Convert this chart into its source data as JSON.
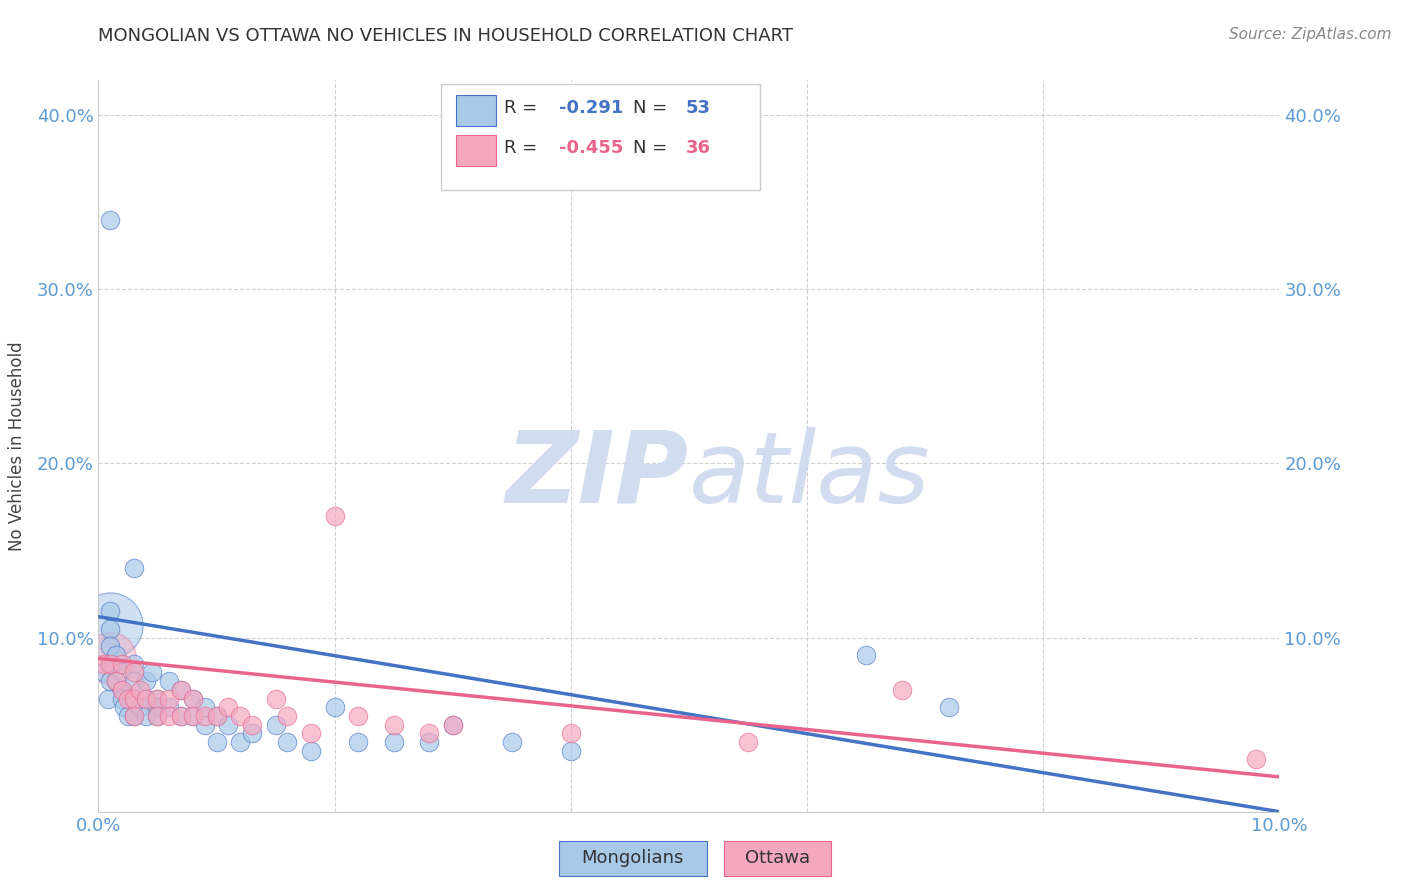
{
  "title": "MONGOLIAN VS OTTAWA NO VEHICLES IN HOUSEHOLD CORRELATION CHART",
  "source": "Source: ZipAtlas.com",
  "ylabel": "No Vehicles in Household",
  "xlim": [
    0.0,
    0.1
  ],
  "ylim": [
    0.0,
    0.42
  ],
  "yticks_left": [
    0.0,
    0.1,
    0.2,
    0.3,
    0.4
  ],
  "ytick_labels_left": [
    "",
    "10.0%",
    "20.0%",
    "30.0%",
    "40.0%"
  ],
  "yticks_right": [
    0.1,
    0.2,
    0.3,
    0.4
  ],
  "ytick_labels_right": [
    "10.0%",
    "20.0%",
    "30.0%",
    "40.0%"
  ],
  "xticks": [
    0.0,
    0.02,
    0.04,
    0.06,
    0.08,
    0.1
  ],
  "xtick_labels": [
    "0.0%",
    "",
    "",
    "",
    "",
    "10.0%"
  ],
  "mongolian_color": "#a8c8e8",
  "ottawa_color": "#f4a8c0",
  "mongolian_line_color": "#4472C4",
  "ottawa_line_color": "#e8648a",
  "legend_R_mongolian": "-0.291",
  "legend_N_mongolian": "53",
  "legend_R_ottawa": "-0.455",
  "legend_N_ottawa": "36",
  "background_color": "#ffffff",
  "grid_color": "#cccccc",
  "mong_x": [
    0.0005,
    0.0008,
    0.001,
    0.001,
    0.001,
    0.001,
    0.0012,
    0.0015,
    0.0015,
    0.002,
    0.002,
    0.002,
    0.0022,
    0.0025,
    0.003,
    0.003,
    0.003,
    0.003,
    0.003,
    0.0035,
    0.004,
    0.004,
    0.004,
    0.0045,
    0.005,
    0.005,
    0.005,
    0.006,
    0.006,
    0.007,
    0.007,
    0.008,
    0.008,
    0.009,
    0.009,
    0.01,
    0.01,
    0.011,
    0.012,
    0.013,
    0.015,
    0.016,
    0.018,
    0.02,
    0.022,
    0.025,
    0.028,
    0.03,
    0.035,
    0.04,
    0.065,
    0.072,
    0.001
  ],
  "mong_y": [
    0.08,
    0.065,
    0.115,
    0.105,
    0.095,
    0.075,
    0.085,
    0.09,
    0.075,
    0.08,
    0.07,
    0.065,
    0.06,
    0.055,
    0.14,
    0.085,
    0.075,
    0.065,
    0.055,
    0.06,
    0.075,
    0.065,
    0.055,
    0.08,
    0.065,
    0.06,
    0.055,
    0.075,
    0.06,
    0.07,
    0.055,
    0.065,
    0.055,
    0.06,
    0.05,
    0.055,
    0.04,
    0.05,
    0.04,
    0.045,
    0.05,
    0.04,
    0.035,
    0.06,
    0.04,
    0.04,
    0.04,
    0.05,
    0.04,
    0.035,
    0.09,
    0.06,
    0.34
  ],
  "ott_x": [
    0.0005,
    0.001,
    0.0015,
    0.002,
    0.002,
    0.0025,
    0.003,
    0.003,
    0.003,
    0.0035,
    0.004,
    0.005,
    0.005,
    0.006,
    0.006,
    0.007,
    0.007,
    0.008,
    0.008,
    0.009,
    0.01,
    0.011,
    0.012,
    0.013,
    0.015,
    0.016,
    0.018,
    0.02,
    0.022,
    0.025,
    0.028,
    0.03,
    0.04,
    0.055,
    0.068,
    0.098
  ],
  "ott_y": [
    0.085,
    0.085,
    0.075,
    0.085,
    0.07,
    0.065,
    0.08,
    0.065,
    0.055,
    0.07,
    0.065,
    0.065,
    0.055,
    0.065,
    0.055,
    0.07,
    0.055,
    0.065,
    0.055,
    0.055,
    0.055,
    0.06,
    0.055,
    0.05,
    0.065,
    0.055,
    0.045,
    0.17,
    0.055,
    0.05,
    0.045,
    0.05,
    0.045,
    0.04,
    0.07,
    0.03
  ],
  "mong_line_x": [
    0.0,
    0.1
  ],
  "mong_line_y": [
    0.112,
    0.0
  ],
  "ott_line_x": [
    0.0,
    0.1
  ],
  "ott_line_y": [
    0.088,
    0.02
  ]
}
